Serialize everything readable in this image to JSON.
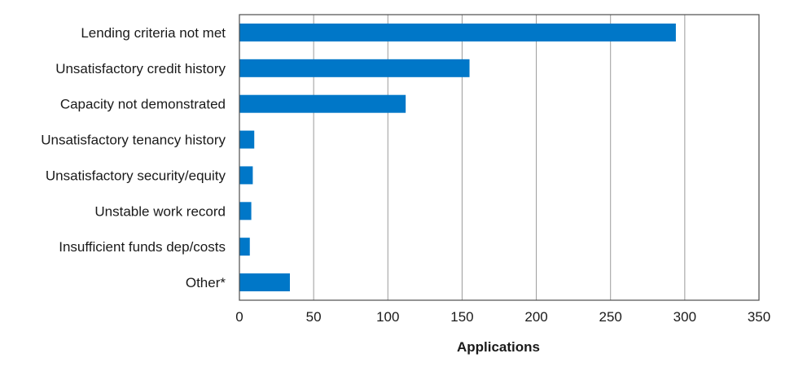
{
  "chart_data": {
    "type": "bar",
    "orientation": "horizontal",
    "title": "",
    "xlabel": "Applications",
    "ylabel": "",
    "xlim": [
      0,
      350
    ],
    "x_ticks": [
      0,
      50,
      100,
      150,
      200,
      250,
      300,
      350
    ],
    "grid": "vertical",
    "legend": "none",
    "bar_color": "#0077c8",
    "categories": [
      "Lending criteria not met",
      "Unsatisfactory credit history",
      "Capacity not demonstrated",
      "Unsatisfactory tenancy history",
      "Unsatisfactory security/equity",
      "Unstable work record",
      "Insufficient funds dep/costs",
      "Other*"
    ],
    "values": [
      294,
      155,
      112,
      10,
      9,
      8,
      7,
      34
    ]
  }
}
